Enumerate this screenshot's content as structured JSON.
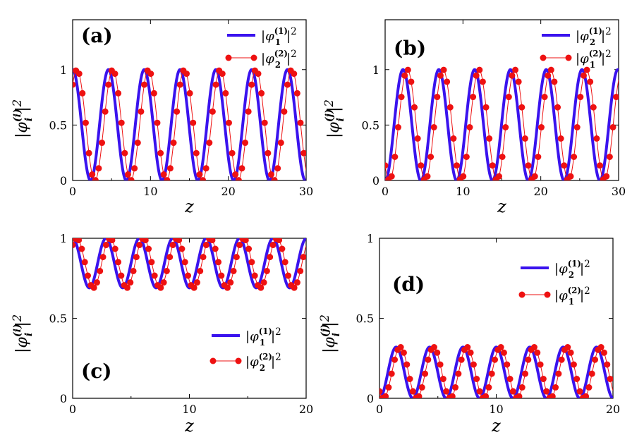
{
  "colors": {
    "line": "#3a13ee",
    "dots": "#ee1111",
    "axis": "#000000",
    "background": "#ffffff"
  },
  "chart_data": [
    {
      "type": "line",
      "panel_label": "(a)",
      "xlabel": "z",
      "ylabel": "|φ_i^(i)|^2",
      "xlim": [
        0,
        30
      ],
      "ylim": [
        0,
        1.45
      ],
      "xticks": [
        "0",
        "10",
        "20",
        "30"
      ],
      "yticks": [
        "0",
        "0.5",
        "1"
      ],
      "legend_position": "top-right",
      "series": [
        {
          "name": "|φ_1^(1)|^2",
          "style": "line",
          "curve": {
            "offset": 0.5,
            "amplitude": 0.5,
            "period": 4.6,
            "shift": 0.0
          }
        },
        {
          "name": "|φ_2^(2)|^2",
          "style": "line-dots",
          "curve": {
            "offset": 0.5,
            "amplitude": 0.5,
            "period": 4.6,
            "shift": 0.0
          }
        }
      ]
    },
    {
      "type": "line",
      "panel_label": "(b)",
      "xlabel": "z",
      "ylabel": "|φ_i^(j)|^2",
      "xlim": [
        0,
        30
      ],
      "ylim": [
        0,
        1.45
      ],
      "xticks": [
        "0",
        "10",
        "20",
        "30"
      ],
      "yticks": [
        "0",
        "0.5",
        "1"
      ],
      "legend_position": "top-right",
      "series": [
        {
          "name": "|φ_2^(1)|^2",
          "style": "line",
          "curve": {
            "offset": 0.5,
            "amplitude": -0.5,
            "period": 4.6,
            "shift": 0.0
          }
        },
        {
          "name": "|φ_1^(2)|^2",
          "style": "line-dots",
          "curve": {
            "offset": 0.5,
            "amplitude": -0.5,
            "period": 4.6,
            "shift": 0.0
          }
        }
      ]
    },
    {
      "type": "line",
      "panel_label": "(c)",
      "xlabel": "z",
      "ylabel": "|φ_i^(i)|^2",
      "xlim": [
        0,
        20
      ],
      "ylim": [
        0,
        1
      ],
      "xticks": [
        "0",
        "10",
        "20"
      ],
      "yticks": [
        "0",
        "0.5",
        "1"
      ],
      "legend_position": "bottom-right",
      "series": [
        {
          "name": "|φ_1^(1)|^2",
          "style": "line",
          "curve": {
            "offset": 0.845,
            "amplitude": 0.155,
            "period": 2.86,
            "shift": 0.0
          }
        },
        {
          "name": "|φ_2^(2)|^2",
          "style": "line-dots",
          "curve": {
            "offset": 0.845,
            "amplitude": 0.155,
            "period": 2.86,
            "shift": 0.0
          }
        }
      ]
    },
    {
      "type": "line",
      "panel_label": "(d)",
      "xlabel": "z",
      "ylabel": "|φ_i^(j)|^2",
      "xlim": [
        0,
        20
      ],
      "ylim": [
        0,
        1
      ],
      "xticks": [
        "0",
        "10",
        "20"
      ],
      "yticks": [
        "0",
        "0.5",
        "1"
      ],
      "legend_position": "top-right",
      "series": [
        {
          "name": "|φ_2^(1)|^2",
          "style": "line",
          "curve": {
            "offset": 0.16,
            "amplitude": -0.16,
            "period": 2.86,
            "shift": 0.0
          }
        },
        {
          "name": "|φ_1^(2)|^2",
          "style": "line-dots",
          "curve": {
            "offset": 0.16,
            "amplitude": -0.16,
            "period": 2.86,
            "shift": 0.0
          }
        }
      ]
    }
  ]
}
